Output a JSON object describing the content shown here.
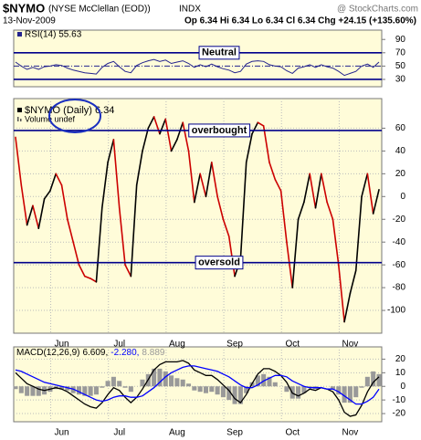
{
  "header": {
    "symbol": "$NYMO",
    "name": "(NYSE McClellan (EOD))",
    "exchange": "INDX",
    "source": "@ StockCharts.com",
    "date": "13-Nov-2009",
    "quote": "Op 6.34 Hi 6.34 Lo 6.34 Cl 6.34 Chg +24.15 (+135.60%)"
  },
  "chart_data": [
    {
      "type": "line",
      "legend": "RSI(14) 55.63",
      "ylim": [
        19,
        104
      ],
      "yticks": [
        30,
        50,
        70,
        90
      ],
      "grid": false,
      "reference_lines": [
        {
          "value": 70,
          "label": "Neutral"
        },
        {
          "value": 30
        }
      ],
      "midline": 50,
      "series": [
        {
          "color": "#23238e",
          "values": [
            56,
            50,
            45,
            48,
            45,
            49,
            50,
            52,
            51,
            47,
            44,
            42,
            40,
            39,
            38,
            48,
            54,
            57,
            49,
            42,
            40,
            51,
            55,
            58,
            60,
            57,
            59,
            54,
            56,
            58,
            54,
            48,
            52,
            49,
            53,
            49,
            46,
            44,
            40,
            42,
            53,
            57,
            58,
            57,
            52,
            50,
            49,
            43,
            39,
            47,
            49,
            52,
            48,
            52,
            49,
            47,
            42,
            36,
            39,
            42,
            50,
            53,
            48,
            56
          ]
        }
      ]
    },
    {
      "type": "line",
      "legend": "$NYMO (Daily) 6.34",
      "sublegend": "Volume undef",
      "ylim": [
        -120,
        86
      ],
      "yticks": [
        -100,
        -80,
        -60,
        -40,
        -20,
        0,
        20,
        40,
        60
      ],
      "grid": true,
      "reference_lines": [
        {
          "value": 58,
          "label": "overbought"
        },
        {
          "value": -58,
          "label": "oversold"
        }
      ],
      "categories": [
        null,
        null,
        null,
        null,
        null,
        null,
        null,
        null,
        "Jun",
        null,
        null,
        null,
        null,
        null,
        null,
        null,
        null,
        null,
        "Jul",
        null,
        null,
        null,
        null,
        null,
        null,
        null,
        null,
        null,
        "Aug",
        null,
        null,
        null,
        null,
        null,
        null,
        null,
        null,
        null,
        "Sep",
        null,
        null,
        null,
        null,
        null,
        null,
        null,
        null,
        null,
        "Oct",
        null,
        null,
        null,
        null,
        null,
        null,
        null,
        null,
        null,
        "Nov",
        null,
        null,
        null,
        null,
        null
      ],
      "series": [
        {
          "color": "#000000",
          "down_color": "#cc0000",
          "values": [
            52,
            10,
            -25,
            -8,
            -28,
            -2,
            5,
            20,
            10,
            -20,
            -40,
            -60,
            -70,
            -72,
            -75,
            -10,
            30,
            50,
            -10,
            -60,
            -70,
            10,
            40,
            60,
            70,
            55,
            68,
            40,
            50,
            65,
            40,
            -5,
            20,
            0,
            30,
            0,
            -20,
            -35,
            -70,
            -55,
            30,
            55,
            65,
            62,
            30,
            15,
            5,
            -40,
            -80,
            -20,
            -5,
            20,
            -10,
            20,
            -5,
            -20,
            -60,
            -110,
            -85,
            -65,
            0,
            20,
            -15,
            6
          ]
        }
      ]
    },
    {
      "type": "macd",
      "legend": "MACD(12,26,9)",
      "ylim": [
        -26,
        29
      ],
      "yticks": [
        -20,
        -10,
        0,
        10,
        20
      ],
      "grid": true,
      "categories": [
        null,
        null,
        null,
        null,
        null,
        null,
        null,
        null,
        "Jun",
        null,
        null,
        null,
        null,
        null,
        null,
        null,
        null,
        null,
        "Jul",
        null,
        null,
        null,
        null,
        null,
        null,
        null,
        null,
        null,
        "Aug",
        null,
        null,
        null,
        null,
        null,
        null,
        null,
        null,
        null,
        "Sep",
        null,
        null,
        null,
        null,
        null,
        null,
        null,
        null,
        null,
        "Oct",
        null,
        null,
        null,
        null,
        null,
        null,
        null,
        null,
        null,
        "Nov",
        null,
        null,
        null,
        null,
        null
      ],
      "series": [
        {
          "label": "6.609,",
          "color": "#000000",
          "style": "line",
          "values": [
            10,
            6,
            2,
            0,
            -2,
            -3,
            -2,
            -1,
            -2,
            -4,
            -7,
            -10,
            -13,
            -15,
            -16,
            -12,
            -6,
            -1,
            -3,
            -8,
            -12,
            -8,
            -2,
            5,
            12,
            16,
            18,
            18,
            18,
            19,
            17,
            12,
            10,
            8,
            8,
            5,
            1,
            -3,
            -9,
            -12,
            -6,
            2,
            9,
            13,
            13,
            11,
            8,
            3,
            -5,
            -7,
            -5,
            -2,
            -3,
            -1,
            -2,
            -4,
            -10,
            -19,
            -22,
            -21,
            -14,
            -4,
            3,
            7
          ]
        },
        {
          "label": "-2.280,",
          "color": "#0000ff",
          "style": "line",
          "values": [
            12,
            11,
            9,
            7,
            5,
            3,
            2,
            1,
            0,
            -1,
            -2,
            -4,
            -6,
            -8,
            -10,
            -11,
            -10,
            -8,
            -7,
            -7,
            -8,
            -8,
            -7,
            -4,
            -1,
            3,
            7,
            10,
            12,
            14,
            15,
            15,
            14,
            13,
            12,
            11,
            9,
            7,
            4,
            1,
            -1,
            -1,
            1,
            4,
            6,
            8,
            8,
            7,
            4,
            2,
            0,
            -1,
            -1,
            -1,
            -2,
            -2,
            -4,
            -7,
            -10,
            -13,
            -13,
            -11,
            -8,
            -2
          ]
        },
        {
          "label": "8.889",
          "color": "#999999",
          "style": "bar",
          "values": [
            -2,
            -5,
            -7,
            -7,
            -7,
            -6,
            -4,
            -2,
            -2,
            -3,
            -5,
            -6,
            -7,
            -7,
            -6,
            -1,
            4,
            7,
            4,
            -1,
            -4,
            0,
            5,
            9,
            13,
            13,
            11,
            8,
            6,
            5,
            2,
            -3,
            -4,
            -5,
            -4,
            -6,
            -8,
            -10,
            -13,
            -13,
            -5,
            3,
            8,
            9,
            7,
            3,
            0,
            -4,
            -9,
            -9,
            -5,
            -1,
            -2,
            0,
            0,
            -2,
            -6,
            -12,
            -12,
            -8,
            -1,
            7,
            11,
            9
          ]
        }
      ]
    }
  ]
}
